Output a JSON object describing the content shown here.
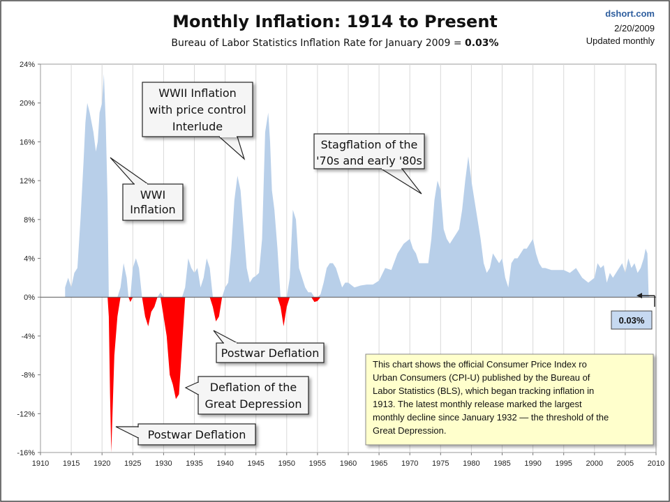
{
  "chart_data": {
    "type": "area",
    "title": "Monthly Inflation: 1914 to Present",
    "subtitle_prefix": "Bureau of Labor Statistics Inflation Rate for January 2009  = ",
    "subtitle_value": "0.03%",
    "source": "dshort.com",
    "date": "2/20/2009",
    "update_note": "Updated monthly",
    "xlabel": "",
    "ylabel": "",
    "xlim": [
      1910,
      2010
    ],
    "ylim": [
      -16,
      24
    ],
    "x_ticks": [
      "1910",
      "1915",
      "1920",
      "1925",
      "1930",
      "1935",
      "1940",
      "1945",
      "1950",
      "1955",
      "1960",
      "1965",
      "1970",
      "1975",
      "1980",
      "1985",
      "1990",
      "1995",
      "2000",
      "2005",
      "2010"
    ],
    "y_ticks": [
      "24%",
      "20%",
      "16%",
      "12%",
      "8%",
      "4%",
      "0%",
      "-4%",
      "-8%",
      "-12%",
      "-16%"
    ],
    "y_tick_values": [
      24,
      20,
      16,
      12,
      8,
      4,
      0,
      -4,
      -8,
      -12,
      -16
    ],
    "grid": "vertical",
    "colors": {
      "positive": "#b8cfe9",
      "negative": "#ff0000",
      "callout_bg": "#f5f5f5",
      "note_bg": "#ffffcc",
      "value_box_bg": "#c6d9f1"
    },
    "series": [
      {
        "values_x": [
          1914.0,
          1914.5,
          1915.0,
          1915.5,
          1916.0,
          1916.5,
          1917.0,
          1917.3,
          1917.6,
          1918.0,
          1918.3,
          1918.6,
          1919.0,
          1919.3,
          1919.6,
          1920.0,
          1920.3,
          1920.6,
          1920.9,
          1921.1,
          1921.3,
          1921.5,
          1921.7,
          1922.0,
          1922.5,
          1923.0,
          1923.5,
          1924.0,
          1924.3,
          1924.6,
          1925.0,
          1925.5,
          1926.0,
          1926.5,
          1927.0,
          1927.5,
          1928.0,
          1928.5,
          1929.0,
          1929.5,
          1930.0,
          1930.5,
          1931.0,
          1931.5,
          1932.0,
          1932.5,
          1933.0,
          1933.5,
          1934.0,
          1934.5,
          1935.0,
          1935.5,
          1936.0,
          1936.5,
          1937.0,
          1937.5,
          1938.0,
          1938.5,
          1939.0,
          1939.5,
          1940.0,
          1940.5,
          1941.0,
          1941.5,
          1942.0,
          1942.5,
          1943.0,
          1943.5,
          1944.0,
          1944.5,
          1945.0,
          1945.5,
          1946.0,
          1946.5,
          1947.0,
          1947.3,
          1947.6,
          1948.0,
          1948.5,
          1949.0,
          1949.5,
          1950.0,
          1950.5,
          1951.0,
          1951.5,
          1952.0,
          1952.5,
          1953.0,
          1953.5,
          1954.0,
          1954.5,
          1955.0,
          1955.5,
          1956.0,
          1956.5,
          1957.0,
          1957.5,
          1958.0,
          1958.5,
          1959.0,
          1959.5,
          1960.0,
          1961.0,
          1962.0,
          1963.0,
          1964.0,
          1965.0,
          1966.0,
          1967.0,
          1968.0,
          1969.0,
          1970.0,
          1970.5,
          1971.0,
          1971.5,
          1972.0,
          1972.5,
          1973.0,
          1973.5,
          1974.0,
          1974.5,
          1975.0,
          1975.5,
          1976.0,
          1976.5,
          1977.0,
          1977.5,
          1978.0,
          1978.5,
          1979.0,
          1979.5,
          1980.0,
          1980.5,
          1981.0,
          1981.5,
          1982.0,
          1982.5,
          1983.0,
          1983.5,
          1984.0,
          1984.5,
          1985.0,
          1985.5,
          1986.0,
          1986.5,
          1987.0,
          1987.5,
          1988.0,
          1988.5,
          1989.0,
          1989.5,
          1990.0,
          1990.5,
          1991.0,
          1991.5,
          1992.0,
          1993.0,
          1994.0,
          1995.0,
          1996.0,
          1997.0,
          1998.0,
          1999.0,
          2000.0,
          2000.5,
          2001.0,
          2001.5,
          2002.0,
          2002.5,
          2003.0,
          2003.5,
          2004.0,
          2004.5,
          2005.0,
          2005.5,
          2006.0,
          2006.5,
          2007.0,
          2007.5,
          2008.0,
          2008.3,
          2008.6,
          2008.8,
          2009.0
        ],
        "values_y": [
          1.0,
          2.0,
          1.0,
          2.5,
          3.0,
          8.0,
          14.0,
          18.0,
          20.0,
          19.0,
          18.0,
          17.0,
          15.0,
          16.0,
          19.0,
          20.0,
          23.0,
          18.0,
          10.0,
          -2.0,
          -10.0,
          -16.0,
          -12.0,
          -6.0,
          -2.0,
          1.0,
          3.5,
          2.0,
          0.0,
          -0.5,
          3.0,
          4.0,
          3.0,
          0.0,
          -2.0,
          -3.0,
          -1.5,
          -1.0,
          0.0,
          0.5,
          -2.0,
          -4.0,
          -8.0,
          -9.0,
          -10.5,
          -10.0,
          -5.0,
          1.0,
          4.0,
          3.0,
          2.5,
          3.0,
          1.0,
          2.0,
          4.0,
          3.0,
          -1.0,
          -2.5,
          -2.0,
          0.0,
          1.0,
          1.5,
          5.0,
          10.0,
          12.5,
          11.0,
          7.0,
          3.0,
          1.5,
          2.0,
          2.2,
          2.5,
          6.0,
          17.0,
          19.0,
          16.0,
          11.0,
          9.0,
          5.0,
          -1.0,
          -3.0,
          -1.0,
          2.0,
          9.0,
          8.0,
          3.0,
          2.0,
          1.0,
          0.5,
          0.5,
          -0.5,
          -0.4,
          0.3,
          1.5,
          3.0,
          3.5,
          3.5,
          3.0,
          2.0,
          1.0,
          1.5,
          1.5,
          1.0,
          1.2,
          1.3,
          1.3,
          1.7,
          3.0,
          2.8,
          4.5,
          5.5,
          6.0,
          5.0,
          4.5,
          3.5,
          3.5,
          3.5,
          3.5,
          6.0,
          10.0,
          12.0,
          11.0,
          7.0,
          6.0,
          5.5,
          6.0,
          6.5,
          7.0,
          9.0,
          12.0,
          14.5,
          12.0,
          10.0,
          8.0,
          6.0,
          3.5,
          2.5,
          3.0,
          4.5,
          4.0,
          3.5,
          4.0,
          2.0,
          1.0,
          3.5,
          4.0,
          4.0,
          4.5,
          5.0,
          5.0,
          5.5,
          6.0,
          4.5,
          3.5,
          3.0,
          3.0,
          2.8,
          2.8,
          2.8,
          2.5,
          3.0,
          2.0,
          1.5,
          2.0,
          3.5,
          3.0,
          3.3,
          1.5,
          2.5,
          2.0,
          2.5,
          3.0,
          3.5,
          2.5,
          4.0,
          3.0,
          3.5,
          2.5,
          3.0,
          4.0,
          5.0,
          4.5,
          0.1,
          0.03
        ]
      }
    ],
    "callouts": [
      {
        "id": "wwi",
        "lines": [
          "WWI",
          "Inflation"
        ]
      },
      {
        "id": "wwii",
        "lines": [
          "WWII Inflation",
          "with price control",
          "Interlude"
        ]
      },
      {
        "id": "stagflation",
        "lines": [
          "Stagflation of the",
          "'70s and early '80s"
        ]
      },
      {
        "id": "postwar1",
        "lines": [
          "Postwar Deflation"
        ]
      },
      {
        "id": "depression",
        "lines": [
          "Deflation of the",
          "Great Depression"
        ]
      },
      {
        "id": "postwar2",
        "lines": [
          "Postwar Deflation"
        ]
      }
    ],
    "note_lines": [
      "This chart shows the official Consumer Price Index ro",
      "Urban Consumers (CPI-U) published by the Bureau of",
      "Labor Statistics (BLS), which began tracking inflation in",
      "1913.  The latest  monthly release marked the largest",
      "monthly decline since January 1932 — the threshold of the",
      "Great Depression."
    ],
    "latest_value_label": "0.03%"
  }
}
